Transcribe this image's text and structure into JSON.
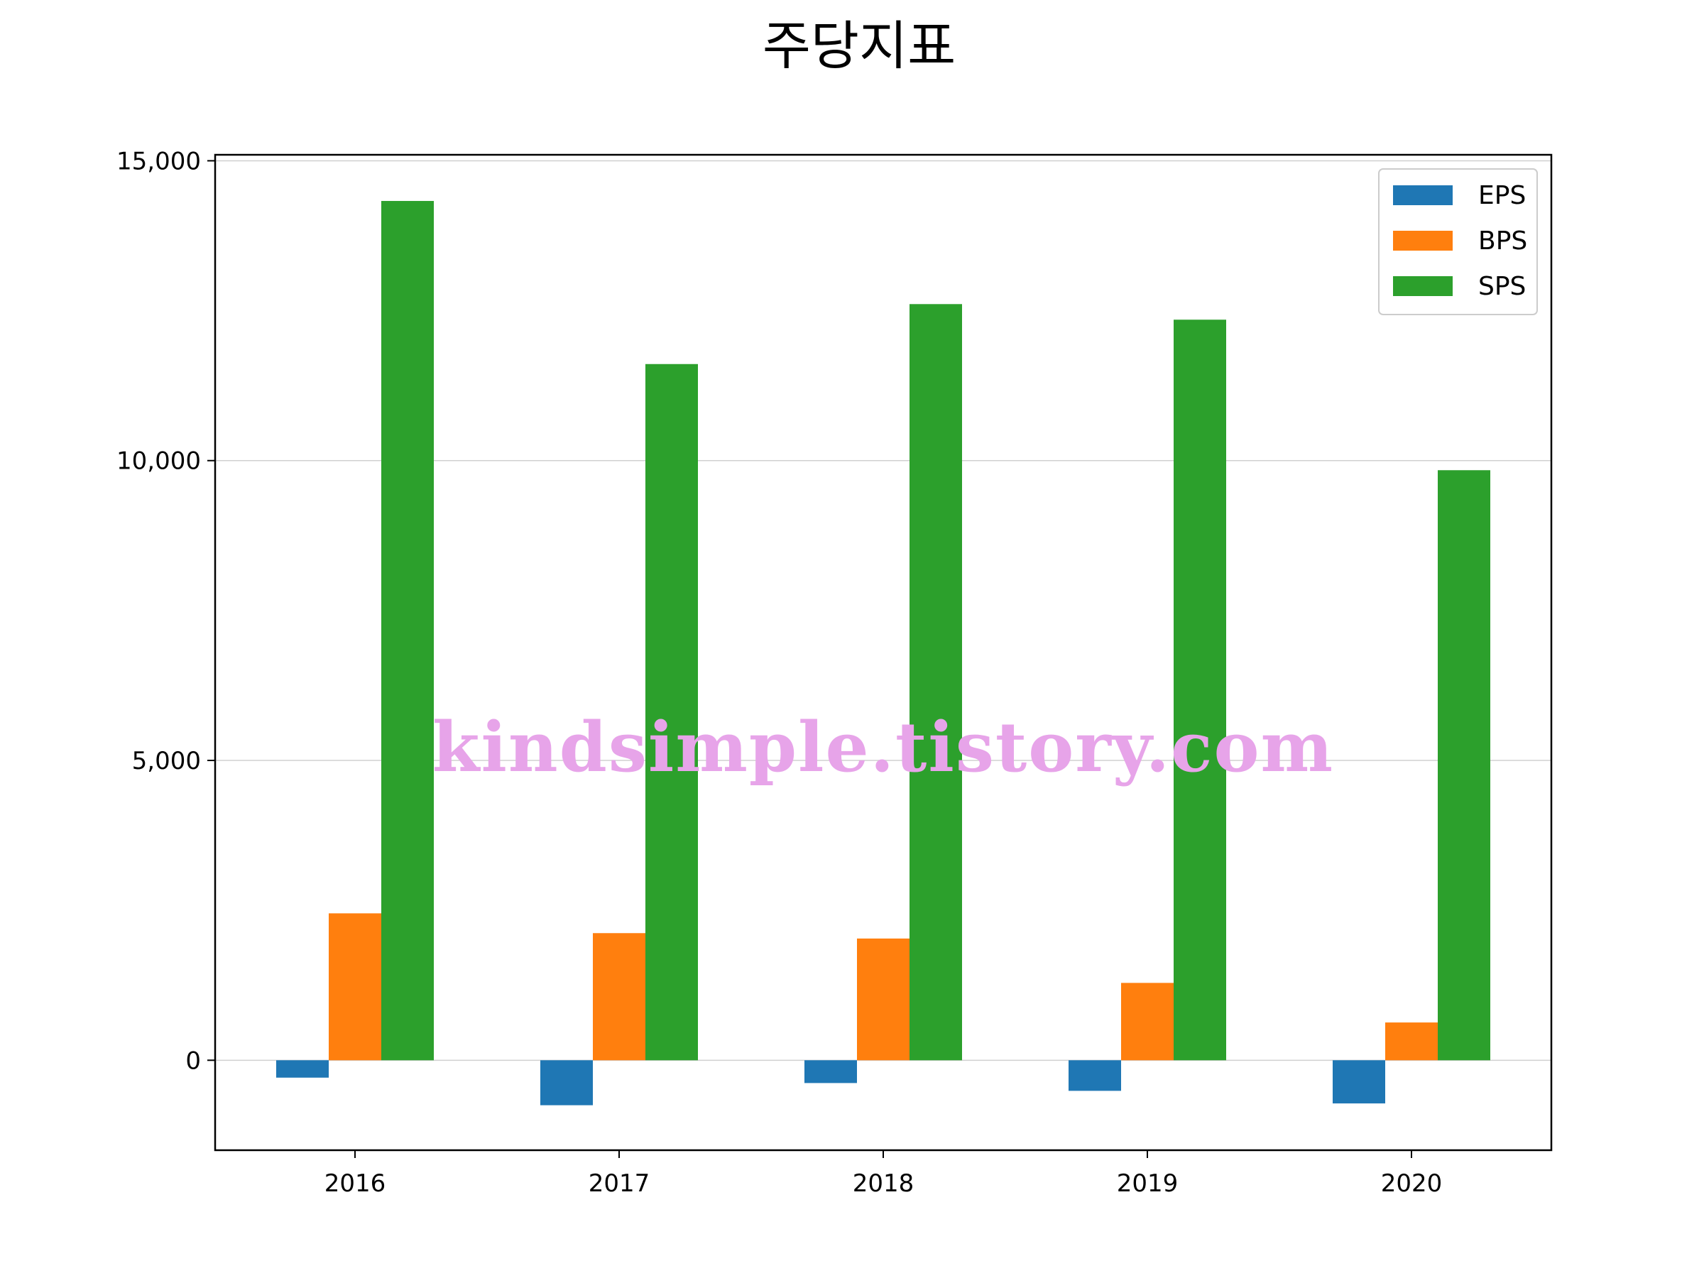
{
  "chart_data": {
    "type": "bar",
    "title": "주당지표",
    "xlabel": "",
    "ylabel": "",
    "categories": [
      "2016",
      "2017",
      "2018",
      "2019",
      "2020"
    ],
    "series": [
      {
        "name": "EPS",
        "color": "#1f77b4",
        "values": [
          -290,
          -750,
          -380,
          -510,
          -720
        ]
      },
      {
        "name": "BPS",
        "color": "#ff7f0e",
        "values": [
          2450,
          2120,
          2030,
          1290,
          630
        ]
      },
      {
        "name": "SPS",
        "color": "#2ca02c",
        "values": [
          14330,
          11610,
          12610,
          12350,
          9840
        ]
      }
    ],
    "ylim": [
      -1500,
      15100
    ],
    "yticks": [
      0,
      5000,
      10000,
      15000
    ],
    "ytick_labels": [
      "0",
      "5,000",
      "10,000",
      "15,000"
    ],
    "grid": "horizontal",
    "legend_position": "upper right"
  },
  "watermark": {
    "text": "kindsimple.tistory.com",
    "color": "#e7a4e9"
  }
}
